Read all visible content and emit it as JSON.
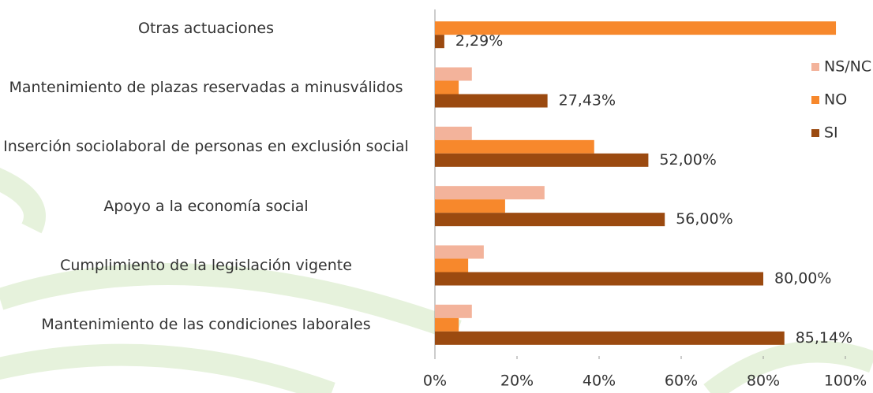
{
  "chart_data": {
    "type": "bar",
    "orientation": "horizontal",
    "categories": [
      "Otras actuaciones",
      "Mantenimiento de plazas reservadas a minusválidos",
      "Inserción sociolaboral de personas en exclusión social",
      "Apoyo a la economía social",
      "Cumplimiento de la legislación vigente",
      "Mantenimiento de las condiciones laborales"
    ],
    "series": [
      {
        "name": "NS/NC",
        "color": "#f3b39b",
        "values": [
          0,
          9,
          9,
          26.7,
          11.9,
          9
        ]
      },
      {
        "name": "NO",
        "color": "#f7882c",
        "values": [
          97.7,
          5.8,
          38.8,
          17.1,
          8.1,
          5.8
        ]
      },
      {
        "name": "SI",
        "color": "#9b4a10",
        "values": [
          2.29,
          27.43,
          52.0,
          56.0,
          80.0,
          85.14
        ],
        "value_labels": [
          "2,29%",
          "27,43%",
          "52,00%",
          "56,00%",
          "80,00%",
          "85,14%"
        ]
      }
    ],
    "xlim": [
      0,
      100
    ],
    "xticks": [
      {
        "value": 0,
        "label": "0%"
      },
      {
        "value": 20,
        "label": "20%"
      },
      {
        "value": 40,
        "label": "40%"
      },
      {
        "value": 60,
        "label": "60%"
      },
      {
        "value": 80,
        "label": "80%"
      },
      {
        "value": 100,
        "label": "100%"
      }
    ],
    "legend": "right"
  }
}
